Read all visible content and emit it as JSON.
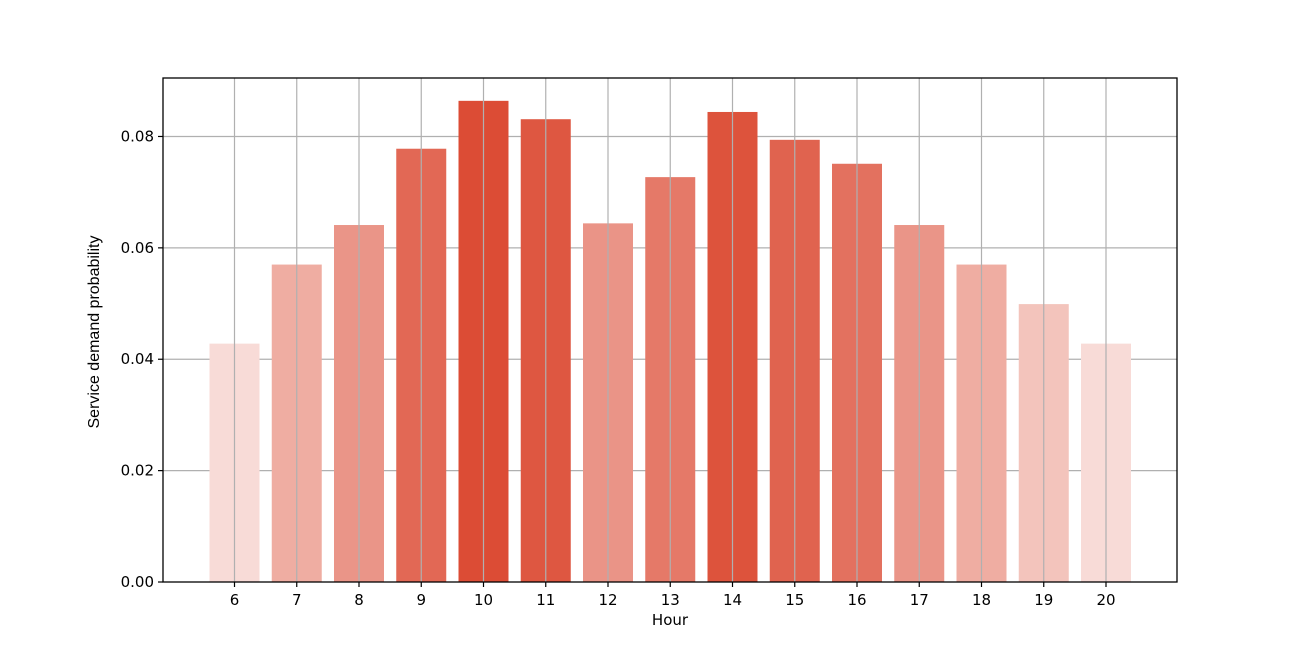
{
  "chart_data": {
    "type": "bar",
    "xlabel": "Hour",
    "ylabel": "Service demand probability",
    "categories": [
      "6",
      "7",
      "8",
      "9",
      "10",
      "11",
      "12",
      "13",
      "14",
      "15",
      "16",
      "17",
      "18",
      "19",
      "20"
    ],
    "values": [
      0.0428,
      0.057,
      0.0641,
      0.0778,
      0.0864,
      0.0831,
      0.0644,
      0.0727,
      0.0844,
      0.0794,
      0.0751,
      0.0641,
      0.057,
      0.0499,
      0.0428
    ],
    "ylim": [
      0,
      0.0905
    ],
    "yticks": [
      "0.00",
      "0.02",
      "0.04",
      "0.06",
      "0.08"
    ],
    "ytick_values": [
      0,
      0.02,
      0.04,
      0.06,
      0.08
    ],
    "grid": true,
    "colors": {
      "bar_base": "#dc4c35",
      "grid": "#b0b0b0",
      "axis": "#000000"
    }
  }
}
